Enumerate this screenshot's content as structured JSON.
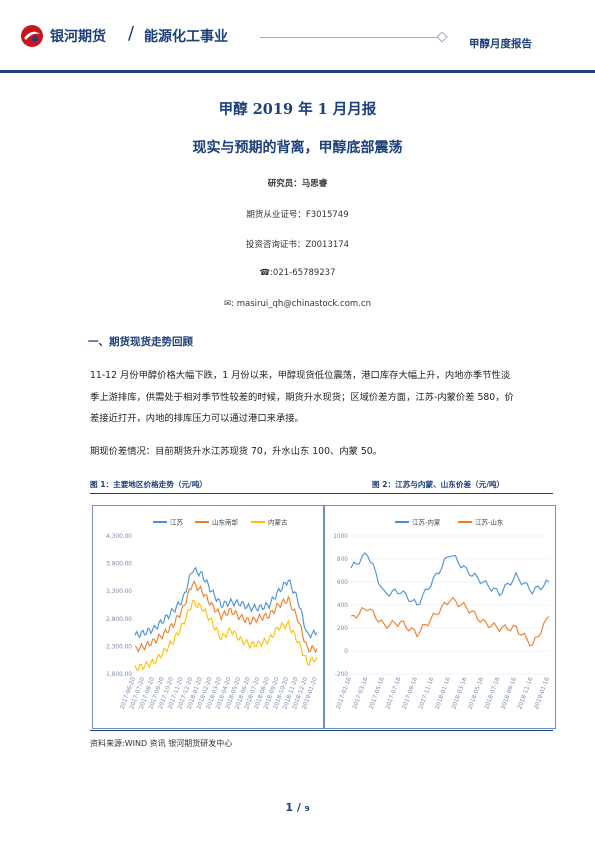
{
  "header": {
    "brand": "银河期货",
    "division": "能源化工事业",
    "report_type": "甲醇月度报告"
  },
  "title": "甲醇 2019 年 1 月月报",
  "subtitle": "现实与预期的背离，甲醇底部震荡",
  "meta": {
    "researcher": "研究员：马思睿",
    "license": "期货从业证号：F3015749",
    "advisor": "投资咨询证书：Z0013174",
    "phone": "☎:021-65789237",
    "email": "✉: masirui_qh@chinastock.com.cn"
  },
  "section1": {
    "heading": "一、期货现货走势回顾",
    "para1": "11-12 月份甲醇价格大幅下跌，1 月份以来，甲醇现货低位震荡，港口库存大幅上升，内地亦季节性淡季上游排库，供需处于相对季节性较差的时候，期货升水现货；区域价差方面，江苏-内蒙价差 580，价差接近打开，内地的排库压力可以通过港口来承接。",
    "para2": "期现价差情况：目前期货升水江苏现货 70，升水山东 100、内蒙 50。"
  },
  "figures": {
    "fig1_caption": "图 1：主要地区价格走势（元/吨）",
    "fig2_caption": "图 2：江苏与内蒙、山东价差（元/吨）",
    "source": "资料来源:WIND 资讯  银河期货研发中心"
  },
  "page": {
    "current": "1",
    "sep": "/",
    "total": "9"
  },
  "colors": {
    "navy": "#1d3f7a",
    "blue": "#4a90d9",
    "orange": "#f07c28",
    "yellow": "#ffc000"
  },
  "chart_data": [
    {
      "type": "line",
      "legend": [
        "江苏",
        "山东南部",
        "内蒙古"
      ],
      "legend_position": "top",
      "y_ticks": [
        "1,800.00",
        "2,300.00",
        "2,800.00",
        "3,300.00",
        "3,800.00",
        "4,300.00"
      ],
      "ylim": [
        1800,
        4300
      ],
      "x_ticks": [
        "2017-06-20",
        "2017-07-20",
        "2017-08-20",
        "2017-09-20",
        "2017-10-20",
        "2017-11-20",
        "2017-12-20",
        "2018-01-20",
        "2018-02-20",
        "2018-03-20",
        "2018-04-20",
        "2018-05-20",
        "2018-06-20",
        "2018-07-20",
        "2018-08-20",
        "2018-09-20",
        "2018-10-20",
        "2018-11-20",
        "2018-12-20",
        "2019-01-20"
      ],
      "series": [
        {
          "name": "江苏",
          "values": [
            2500,
            2550,
            2620,
            2780,
            2950,
            3150,
            3700,
            3600,
            3300,
            3050,
            3100,
            3080,
            3000,
            3000,
            3050,
            3300,
            3500,
            3150,
            2500,
            2550
          ]
        },
        {
          "name": "山东南部",
          "values": [
            2250,
            2300,
            2400,
            2520,
            2700,
            2980,
            3450,
            3300,
            3050,
            2850,
            2950,
            2830,
            2750,
            2820,
            2860,
            3050,
            3150,
            2800,
            2250,
            2260
          ]
        },
        {
          "name": "内蒙古",
          "values": [
            1900,
            1950,
            2020,
            2200,
            2400,
            2700,
            3100,
            3000,
            2750,
            2450,
            2600,
            2420,
            2330,
            2350,
            2420,
            2650,
            2700,
            2400,
            2000,
            2100
          ]
        }
      ],
      "grid": false
    },
    {
      "type": "line",
      "legend": [
        "江苏-内蒙",
        "江苏-山东"
      ],
      "legend_position": "top",
      "y_ticks": [
        "-200",
        "0",
        "200",
        "400",
        "600",
        "800",
        "1000"
      ],
      "ylim": [
        -200,
        1000
      ],
      "x_ticks": [
        "2017-01-16",
        "2017-03-16",
        "2017-05-16",
        "2017-07-16",
        "2017-09-16",
        "2017-11-16",
        "2018-01-16",
        "2018-03-16",
        "2018-05-16",
        "2018-07-16",
        "2018-09-16",
        "2018-11-16",
        "2019-01-16"
      ],
      "series": [
        {
          "name": "江苏-内蒙",
          "values": [
            720,
            850,
            500,
            520,
            400,
            620,
            850,
            700,
            600,
            500,
            650,
            520,
            600
          ]
        },
        {
          "name": "江苏-山东",
          "values": [
            280,
            380,
            220,
            250,
            150,
            300,
            450,
            380,
            250,
            200,
            200,
            50,
            300
          ]
        }
      ],
      "grid": true
    }
  ]
}
